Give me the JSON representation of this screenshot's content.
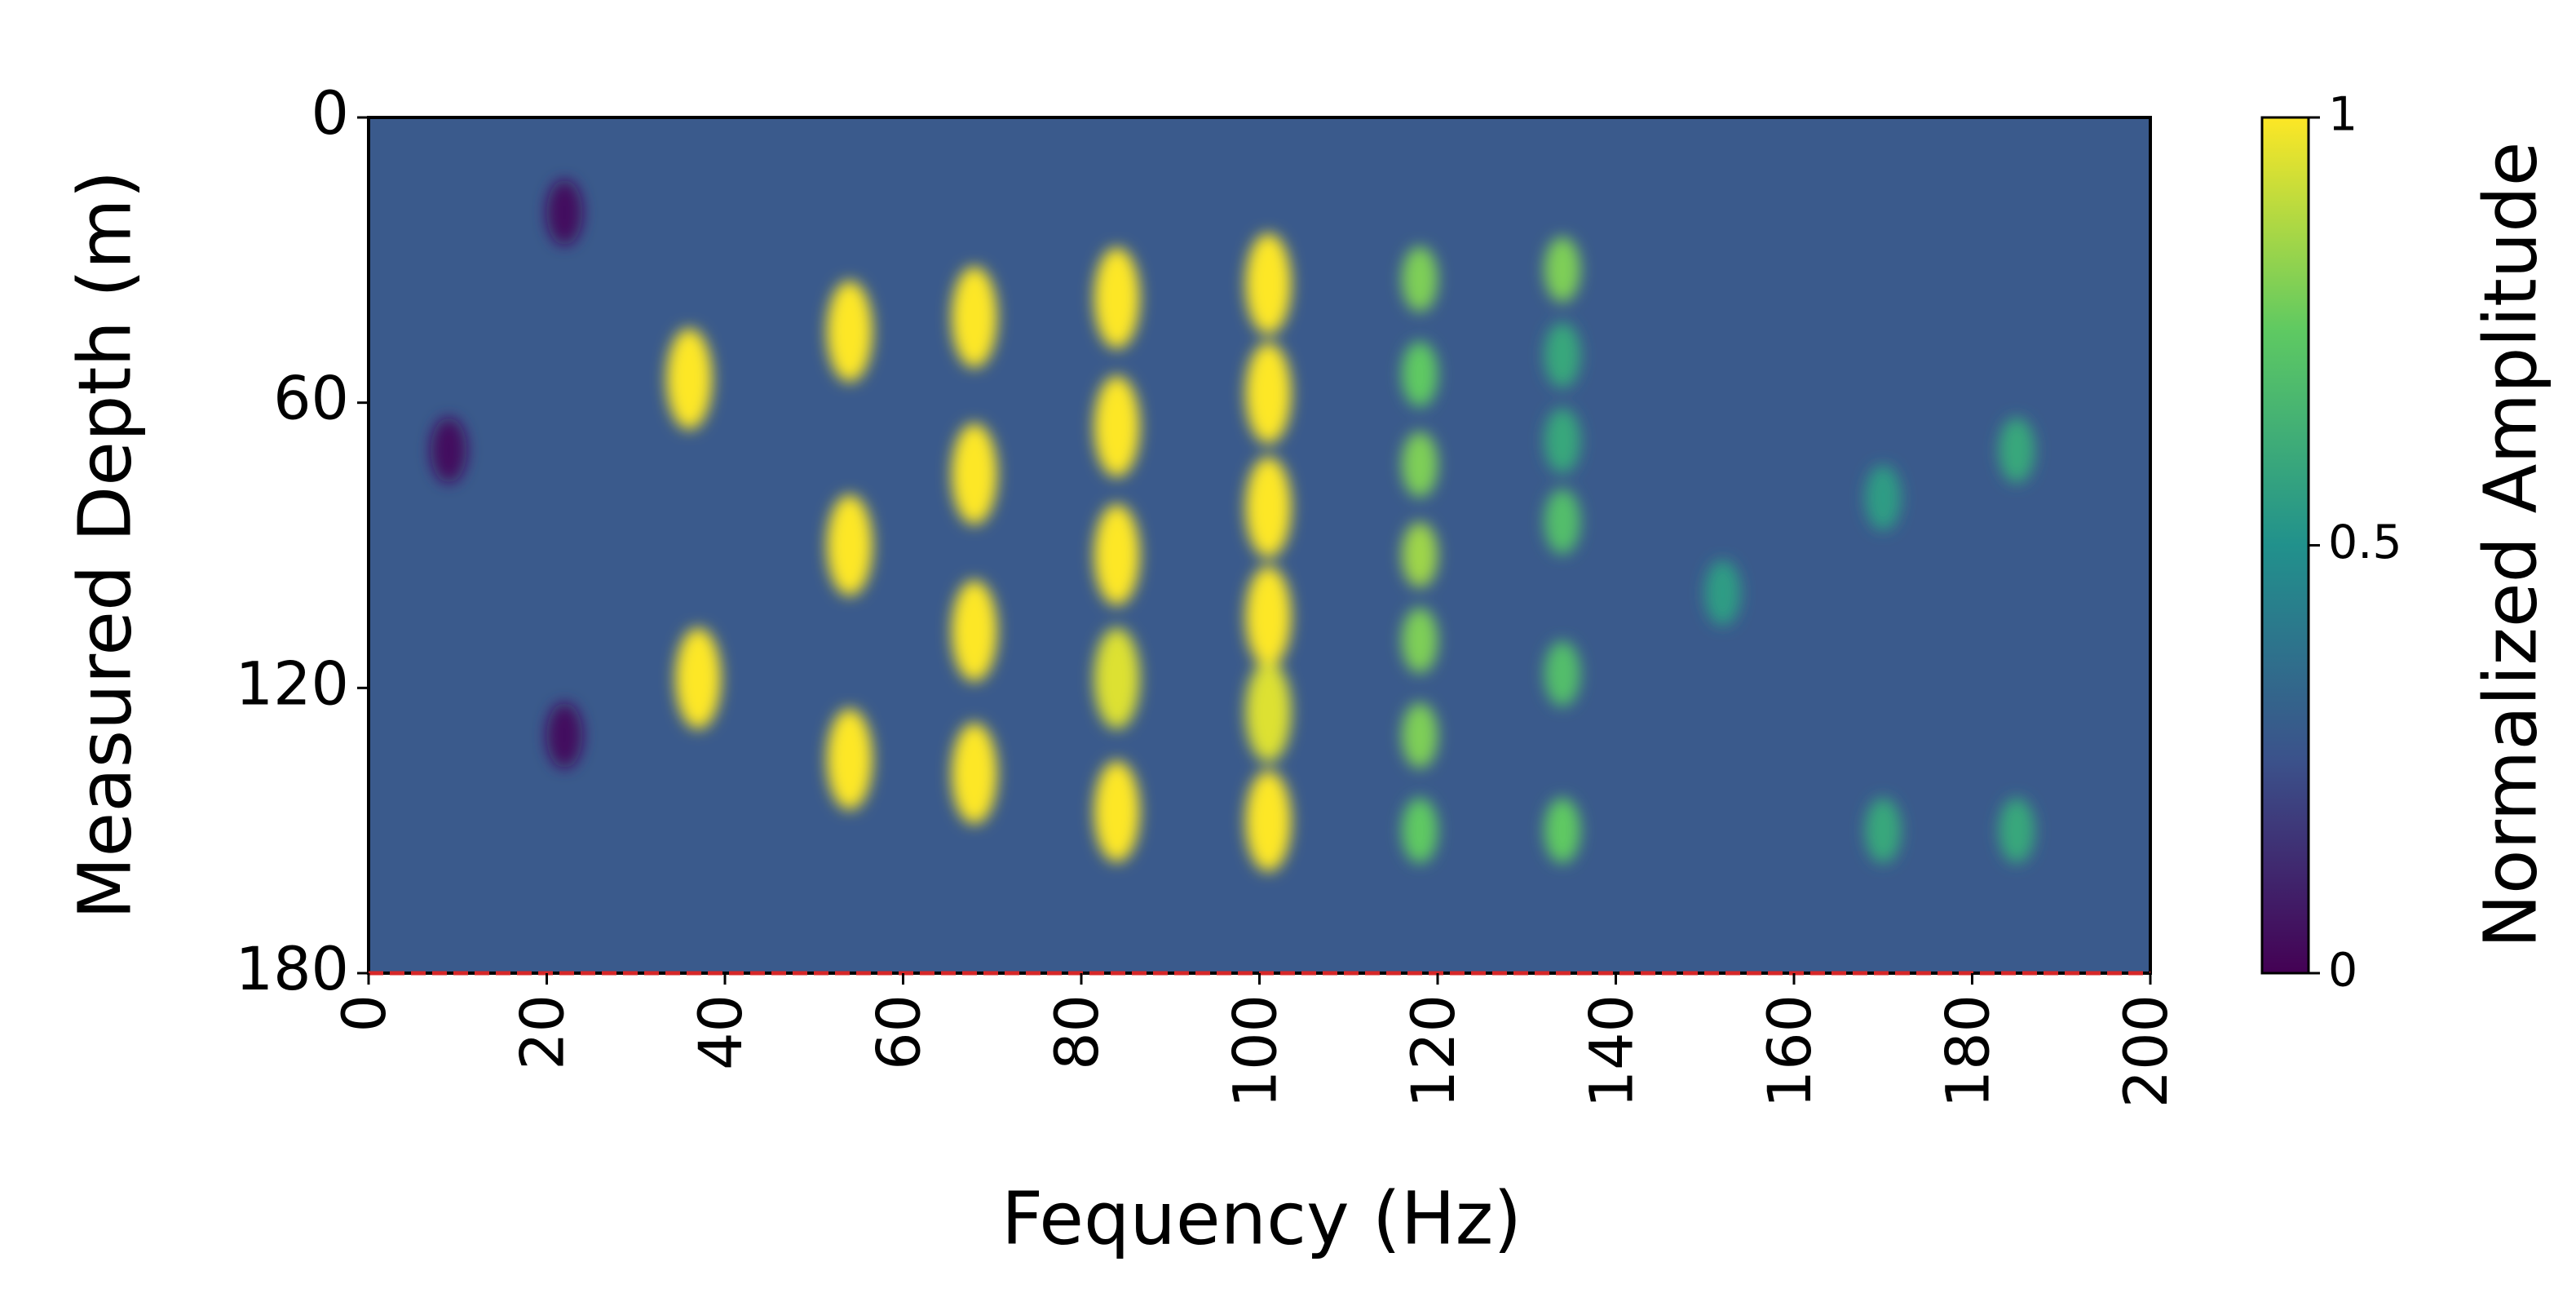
{
  "chart_data": {
    "type": "heatmap",
    "xlabel": "Fequency (Hz)",
    "ylabel": "Measured Depth (m)",
    "colorbar_label": "Normalized Amplitude",
    "x": [
      9,
      22,
      22,
      36,
      37,
      54,
      54,
      54,
      68,
      68,
      68,
      68,
      84,
      84,
      84,
      84,
      84,
      101,
      101,
      101,
      101,
      101,
      101,
      118,
      118,
      118,
      118,
      118,
      118,
      118,
      134,
      134,
      134,
      134,
      134,
      134,
      152,
      170,
      170,
      185,
      185
    ],
    "y": [
      70,
      20,
      130,
      55,
      118,
      45,
      90,
      135,
      42,
      75,
      108,
      138,
      38,
      65,
      92,
      118,
      146,
      35,
      58,
      82,
      105,
      125,
      148,
      34,
      54,
      73,
      92,
      110,
      130,
      150,
      32,
      50,
      68,
      85,
      117,
      150,
      100,
      80,
      150,
      70,
      150
    ],
    "values": [
      0.05,
      0.05,
      0.05,
      1,
      1,
      1,
      1,
      1,
      1,
      1,
      1,
      1,
      1,
      1,
      1,
      0.95,
      1,
      1,
      1,
      1,
      1,
      0.95,
      1,
      0.8,
      0.75,
      0.8,
      0.85,
      0.8,
      0.8,
      0.75,
      0.8,
      0.6,
      0.6,
      0.7,
      0.7,
      0.75,
      0.55,
      0.55,
      0.6,
      0.6,
      0.6
    ],
    "xlim": [
      0,
      200
    ],
    "xticks": [
      0,
      20,
      40,
      60,
      80,
      100,
      120,
      140,
      160,
      180,
      200
    ],
    "ylim": [
      180,
      0
    ],
    "yticks": [
      0,
      60,
      120,
      180
    ],
    "clim": [
      0,
      1
    ],
    "cticks": [
      0,
      0.5,
      1
    ],
    "reference_line": 180,
    "reference_color": "#d62728"
  }
}
